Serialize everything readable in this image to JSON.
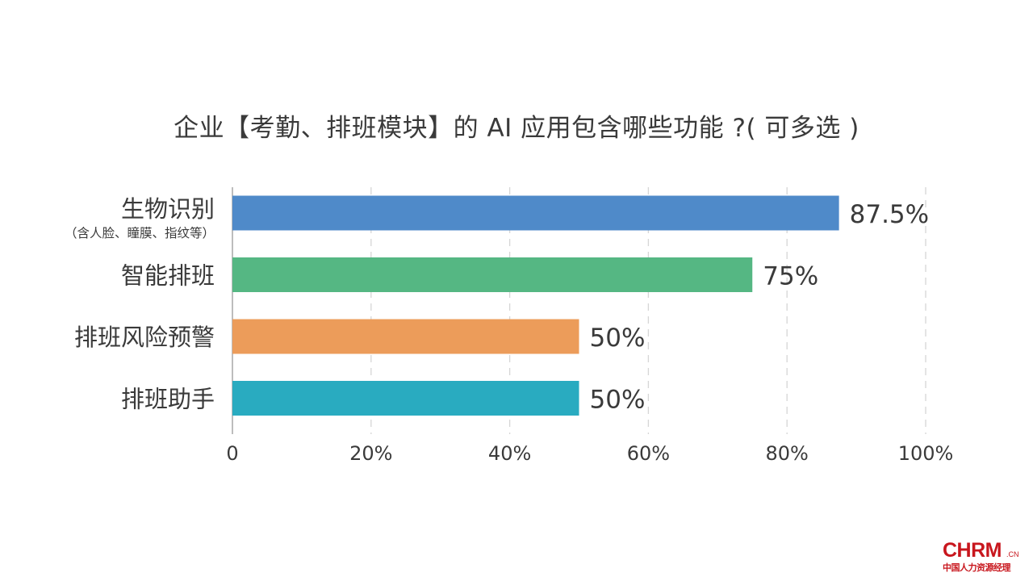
{
  "chart_data": {
    "type": "bar",
    "orientation": "horizontal",
    "title": "企业【考勤、排班模块】的 AI 应用包含哪些功能 ?( 可多选 )",
    "categories": [
      {
        "label": "生物识别",
        "sublabel": "（含人脸、瞳膜、指纹等）"
      },
      {
        "label": "智能排班",
        "sublabel": ""
      },
      {
        "label": "排班风险预警",
        "sublabel": ""
      },
      {
        "label": "排班助手",
        "sublabel": ""
      }
    ],
    "values": [
      87.5,
      75,
      50,
      50
    ],
    "value_labels": [
      "87.5%",
      "75%",
      "50%",
      "50%"
    ],
    "colors": [
      "#4f8ac9",
      "#55b783",
      "#ec9c5a",
      "#29abc0"
    ],
    "xlim": [
      0,
      100
    ],
    "xticks": [
      0,
      20,
      40,
      60,
      80,
      100
    ],
    "xtick_labels": [
      "0",
      "20%",
      "40%",
      "60%",
      "80%",
      "100%"
    ],
    "grid": "vertical dashed",
    "legend": "none"
  },
  "logo": {
    "main": "CHRM",
    "suffix": ".CN",
    "tagline": "中国人力资源经理"
  }
}
